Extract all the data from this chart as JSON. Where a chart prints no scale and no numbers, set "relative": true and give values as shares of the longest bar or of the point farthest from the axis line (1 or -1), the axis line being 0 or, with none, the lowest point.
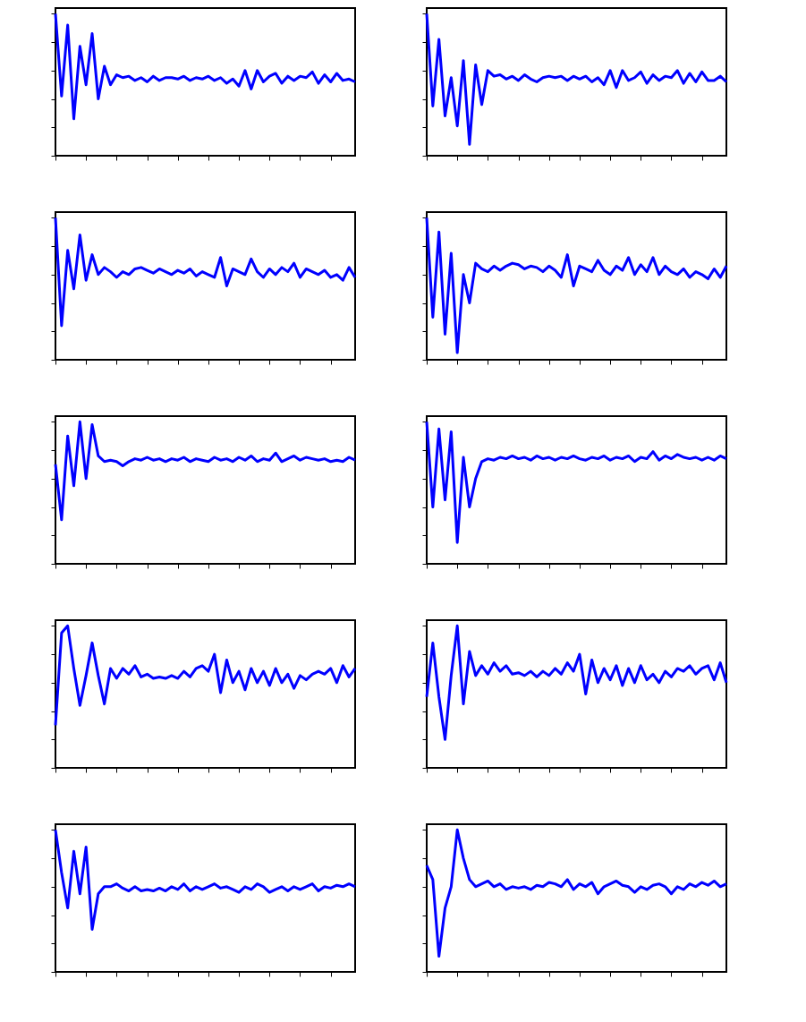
{
  "chart_data": [
    {
      "type": "line",
      "relative": true,
      "tick_labels": false,
      "categories": [
        null,
        null,
        null,
        null,
        null,
        null,
        null,
        null,
        null,
        null,
        null,
        null,
        null,
        null,
        null,
        null,
        null,
        null,
        null,
        null,
        null,
        null,
        null,
        null,
        null,
        null,
        null,
        null,
        null,
        null,
        null,
        null,
        null,
        null,
        null,
        null,
        null,
        null,
        null,
        null,
        null,
        null,
        null,
        null,
        null,
        null,
        null,
        null,
        null,
        null
      ],
      "series": [
        {
          "color": "#0000ff",
          "values": [
            1.0,
            0.42,
            0.92,
            0.26,
            0.77,
            0.5,
            0.86,
            0.4,
            0.63,
            0.5,
            0.57,
            0.55,
            0.56,
            0.53,
            0.55,
            0.52,
            0.56,
            0.53,
            0.55,
            0.55,
            0.54,
            0.56,
            0.53,
            0.55,
            0.54,
            0.56,
            0.53,
            0.55,
            0.51,
            0.54,
            0.49,
            0.6,
            0.47,
            0.6,
            0.52,
            0.56,
            0.58,
            0.51,
            0.56,
            0.53,
            0.56,
            0.55,
            0.59,
            0.51,
            0.57,
            0.52,
            0.58,
            0.53,
            0.54,
            0.52
          ]
        }
      ]
    },
    {
      "type": "line",
      "relative": true,
      "tick_labels": false,
      "categories": [
        null,
        null,
        null,
        null,
        null,
        null,
        null,
        null,
        null,
        null,
        null,
        null,
        null,
        null,
        null,
        null,
        null,
        null,
        null,
        null,
        null,
        null,
        null,
        null,
        null,
        null,
        null,
        null,
        null,
        null,
        null,
        null,
        null,
        null,
        null,
        null,
        null,
        null,
        null,
        null,
        null,
        null,
        null,
        null,
        null,
        null,
        null,
        null,
        null,
        null
      ],
      "series": [
        {
          "color": "#0000ff",
          "values": [
            1.0,
            0.35,
            0.82,
            0.28,
            0.55,
            0.21,
            0.67,
            0.08,
            0.64,
            0.36,
            0.6,
            0.56,
            0.57,
            0.54,
            0.56,
            0.53,
            0.57,
            0.54,
            0.52,
            0.55,
            0.56,
            0.55,
            0.56,
            0.53,
            0.56,
            0.54,
            0.56,
            0.52,
            0.55,
            0.5,
            0.6,
            0.48,
            0.6,
            0.53,
            0.55,
            0.59,
            0.51,
            0.57,
            0.53,
            0.56,
            0.55,
            0.6,
            0.51,
            0.58,
            0.52,
            0.59,
            0.53,
            0.53,
            0.56,
            0.52
          ]
        }
      ]
    },
    {
      "type": "line",
      "relative": true,
      "tick_labels": false,
      "categories": [
        null,
        null,
        null,
        null,
        null,
        null,
        null,
        null,
        null,
        null,
        null,
        null,
        null,
        null,
        null,
        null,
        null,
        null,
        null,
        null,
        null,
        null,
        null,
        null,
        null,
        null,
        null,
        null,
        null,
        null,
        null,
        null,
        null,
        null,
        null,
        null,
        null,
        null,
        null,
        null,
        null,
        null,
        null,
        null,
        null,
        null,
        null,
        null,
        null,
        null
      ],
      "series": [
        {
          "color": "#0000ff",
          "values": [
            1.0,
            0.24,
            0.77,
            0.5,
            0.88,
            0.56,
            0.74,
            0.6,
            0.65,
            0.62,
            0.58,
            0.62,
            0.6,
            0.64,
            0.65,
            0.63,
            0.61,
            0.64,
            0.62,
            0.6,
            0.63,
            0.61,
            0.64,
            0.59,
            0.62,
            0.6,
            0.58,
            0.72,
            0.52,
            0.64,
            0.62,
            0.6,
            0.71,
            0.62,
            0.58,
            0.64,
            0.6,
            0.65,
            0.62,
            0.68,
            0.58,
            0.64,
            0.62,
            0.6,
            0.63,
            0.58,
            0.6,
            0.56,
            0.65,
            0.58
          ]
        }
      ]
    },
    {
      "type": "line",
      "relative": true,
      "tick_labels": false,
      "categories": [
        null,
        null,
        null,
        null,
        null,
        null,
        null,
        null,
        null,
        null,
        null,
        null,
        null,
        null,
        null,
        null,
        null,
        null,
        null,
        null,
        null,
        null,
        null,
        null,
        null,
        null,
        null,
        null,
        null,
        null,
        null,
        null,
        null,
        null,
        null,
        null,
        null,
        null,
        null,
        null,
        null,
        null,
        null,
        null,
        null,
        null,
        null,
        null,
        null,
        null
      ],
      "series": [
        {
          "color": "#0000ff",
          "values": [
            1.0,
            0.3,
            0.9,
            0.18,
            0.75,
            0.05,
            0.6,
            0.4,
            0.68,
            0.64,
            0.62,
            0.66,
            0.63,
            0.66,
            0.68,
            0.67,
            0.64,
            0.66,
            0.65,
            0.62,
            0.66,
            0.63,
            0.58,
            0.74,
            0.52,
            0.66,
            0.64,
            0.62,
            0.7,
            0.63,
            0.6,
            0.66,
            0.63,
            0.72,
            0.6,
            0.67,
            0.62,
            0.72,
            0.6,
            0.66,
            0.62,
            0.6,
            0.64,
            0.58,
            0.62,
            0.6,
            0.57,
            0.64,
            0.58,
            0.66
          ]
        }
      ]
    },
    {
      "type": "line",
      "relative": true,
      "tick_labels": false,
      "categories": [
        null,
        null,
        null,
        null,
        null,
        null,
        null,
        null,
        null,
        null,
        null,
        null,
        null,
        null,
        null,
        null,
        null,
        null,
        null,
        null,
        null,
        null,
        null,
        null,
        null,
        null,
        null,
        null,
        null,
        null,
        null,
        null,
        null,
        null,
        null,
        null,
        null,
        null,
        null,
        null,
        null,
        null,
        null,
        null,
        null,
        null,
        null,
        null,
        null,
        null
      ],
      "series": [
        {
          "color": "#0000ff",
          "values": [
            0.7,
            0.31,
            0.9,
            0.55,
            1.0,
            0.6,
            0.98,
            0.76,
            0.72,
            0.73,
            0.72,
            0.69,
            0.72,
            0.74,
            0.73,
            0.75,
            0.73,
            0.74,
            0.72,
            0.74,
            0.73,
            0.75,
            0.72,
            0.74,
            0.73,
            0.72,
            0.75,
            0.73,
            0.74,
            0.72,
            0.75,
            0.73,
            0.76,
            0.72,
            0.74,
            0.73,
            0.78,
            0.72,
            0.74,
            0.76,
            0.73,
            0.75,
            0.74,
            0.73,
            0.74,
            0.72,
            0.73,
            0.72,
            0.75,
            0.73
          ]
        }
      ]
    },
    {
      "type": "line",
      "relative": true,
      "tick_labels": false,
      "categories": [
        null,
        null,
        null,
        null,
        null,
        null,
        null,
        null,
        null,
        null,
        null,
        null,
        null,
        null,
        null,
        null,
        null,
        null,
        null,
        null,
        null,
        null,
        null,
        null,
        null,
        null,
        null,
        null,
        null,
        null,
        null,
        null,
        null,
        null,
        null,
        null,
        null,
        null,
        null,
        null,
        null,
        null,
        null,
        null,
        null,
        null,
        null,
        null,
        null,
        null
      ],
      "series": [
        {
          "color": "#0000ff",
          "values": [
            1.0,
            0.4,
            0.95,
            0.45,
            0.93,
            0.15,
            0.75,
            0.4,
            0.6,
            0.72,
            0.74,
            0.73,
            0.75,
            0.74,
            0.76,
            0.74,
            0.75,
            0.73,
            0.76,
            0.74,
            0.75,
            0.73,
            0.75,
            0.74,
            0.76,
            0.74,
            0.73,
            0.75,
            0.74,
            0.76,
            0.73,
            0.75,
            0.74,
            0.76,
            0.72,
            0.75,
            0.74,
            0.79,
            0.73,
            0.76,
            0.74,
            0.77,
            0.75,
            0.74,
            0.75,
            0.73,
            0.75,
            0.73,
            0.76,
            0.74
          ]
        }
      ]
    },
    {
      "type": "line",
      "relative": true,
      "tick_labels": false,
      "categories": [
        null,
        null,
        null,
        null,
        null,
        null,
        null,
        null,
        null,
        null,
        null,
        null,
        null,
        null,
        null,
        null,
        null,
        null,
        null,
        null,
        null,
        null,
        null,
        null,
        null,
        null,
        null,
        null,
        null,
        null,
        null,
        null,
        null,
        null,
        null,
        null,
        null,
        null,
        null,
        null,
        null,
        null,
        null,
        null,
        null,
        null,
        null,
        null,
        null,
        null
      ],
      "series": [
        {
          "color": "#0000ff",
          "values": [
            0.3,
            0.95,
            1.0,
            0.7,
            0.44,
            0.65,
            0.88,
            0.65,
            0.45,
            0.7,
            0.63,
            0.7,
            0.66,
            0.72,
            0.64,
            0.66,
            0.63,
            0.64,
            0.63,
            0.65,
            0.63,
            0.68,
            0.64,
            0.7,
            0.72,
            0.68,
            0.8,
            0.53,
            0.76,
            0.6,
            0.68,
            0.55,
            0.7,
            0.6,
            0.68,
            0.58,
            0.7,
            0.6,
            0.66,
            0.56,
            0.65,
            0.62,
            0.66,
            0.68,
            0.66,
            0.7,
            0.6,
            0.72,
            0.64,
            0.7
          ]
        }
      ]
    },
    {
      "type": "line",
      "relative": true,
      "tick_labels": false,
      "categories": [
        null,
        null,
        null,
        null,
        null,
        null,
        null,
        null,
        null,
        null,
        null,
        null,
        null,
        null,
        null,
        null,
        null,
        null,
        null,
        null,
        null,
        null,
        null,
        null,
        null,
        null,
        null,
        null,
        null,
        null,
        null,
        null,
        null,
        null,
        null,
        null,
        null,
        null,
        null,
        null,
        null,
        null,
        null,
        null,
        null,
        null,
        null,
        null,
        null,
        null
      ],
      "series": [
        {
          "color": "#0000ff",
          "values": [
            0.5,
            0.88,
            0.5,
            0.2,
            0.65,
            1.0,
            0.45,
            0.82,
            0.65,
            0.72,
            0.66,
            0.74,
            0.68,
            0.72,
            0.66,
            0.67,
            0.65,
            0.68,
            0.64,
            0.68,
            0.65,
            0.7,
            0.66,
            0.74,
            0.68,
            0.8,
            0.52,
            0.76,
            0.6,
            0.7,
            0.62,
            0.72,
            0.58,
            0.7,
            0.6,
            0.72,
            0.62,
            0.66,
            0.6,
            0.68,
            0.64,
            0.7,
            0.68,
            0.72,
            0.66,
            0.7,
            0.72,
            0.62,
            0.74,
            0.6
          ]
        }
      ]
    },
    {
      "type": "line",
      "relative": true,
      "tick_labels": false,
      "categories": [
        null,
        null,
        null,
        null,
        null,
        null,
        null,
        null,
        null,
        null,
        null,
        null,
        null,
        null,
        null,
        null,
        null,
        null,
        null,
        null,
        null,
        null,
        null,
        null,
        null,
        null,
        null,
        null,
        null,
        null,
        null,
        null,
        null,
        null,
        null,
        null,
        null,
        null,
        null,
        null,
        null,
        null,
        null,
        null,
        null,
        null,
        null,
        null,
        null,
        null
      ],
      "series": [
        {
          "color": "#0000ff",
          "values": [
            1.0,
            0.7,
            0.45,
            0.85,
            0.55,
            0.88,
            0.3,
            0.55,
            0.6,
            0.6,
            0.62,
            0.59,
            0.57,
            0.6,
            0.57,
            0.58,
            0.57,
            0.59,
            0.57,
            0.6,
            0.58,
            0.62,
            0.57,
            0.6,
            0.58,
            0.6,
            0.62,
            0.59,
            0.6,
            0.58,
            0.56,
            0.6,
            0.58,
            0.62,
            0.6,
            0.56,
            0.58,
            0.6,
            0.57,
            0.6,
            0.58,
            0.6,
            0.62,
            0.57,
            0.6,
            0.59,
            0.61,
            0.6,
            0.62,
            0.6
          ]
        }
      ]
    },
    {
      "type": "line",
      "relative": true,
      "tick_labels": false,
      "categories": [
        null,
        null,
        null,
        null,
        null,
        null,
        null,
        null,
        null,
        null,
        null,
        null,
        null,
        null,
        null,
        null,
        null,
        null,
        null,
        null,
        null,
        null,
        null,
        null,
        null,
        null,
        null,
        null,
        null,
        null,
        null,
        null,
        null,
        null,
        null,
        null,
        null,
        null,
        null,
        null,
        null,
        null,
        null,
        null,
        null,
        null,
        null,
        null,
        null,
        null
      ],
      "series": [
        {
          "color": "#0000ff",
          "values": [
            0.75,
            0.65,
            0.11,
            0.45,
            0.6,
            1.0,
            0.8,
            0.65,
            0.6,
            0.62,
            0.64,
            0.6,
            0.62,
            0.58,
            0.6,
            0.59,
            0.6,
            0.58,
            0.61,
            0.6,
            0.63,
            0.62,
            0.6,
            0.65,
            0.58,
            0.62,
            0.6,
            0.63,
            0.55,
            0.6,
            0.62,
            0.64,
            0.61,
            0.6,
            0.56,
            0.6,
            0.58,
            0.61,
            0.62,
            0.6,
            0.55,
            0.6,
            0.58,
            0.62,
            0.6,
            0.63,
            0.61,
            0.64,
            0.6,
            0.62
          ]
        }
      ]
    }
  ]
}
